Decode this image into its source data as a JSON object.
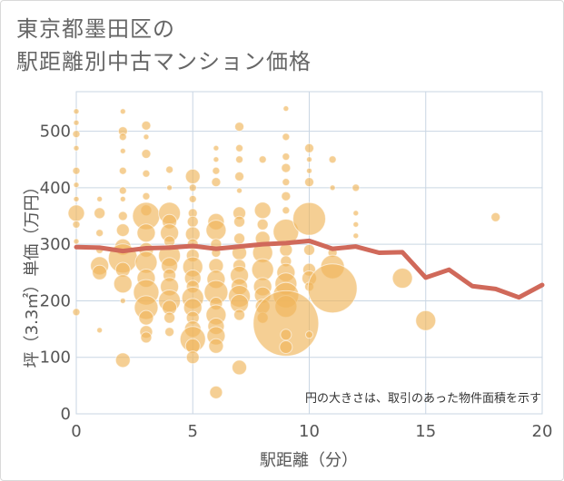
{
  "title_line1": "東京都墨田区の",
  "title_line2": "駅距離別中古マンション価格",
  "chart_data": {
    "type": "scatter",
    "xlabel": "駅距離（分）",
    "ylabel": "坪（3.3㎡）単価（万円）",
    "xlim": [
      0,
      20
    ],
    "ylim": [
      0,
      570
    ],
    "xticks": [
      0,
      5,
      10,
      15,
      20
    ],
    "yticks": [
      0,
      100,
      200,
      300,
      400,
      500
    ],
    "grid": true,
    "note": "円の大きさは、取引のあった物件面積を示す",
    "colors": {
      "bubble": "#f0b55a",
      "line": "#d0695a",
      "grid": "#c9d6e3",
      "tick": "#555555"
    },
    "bubbles": [
      {
        "x": 0,
        "y": 535,
        "s": 3
      },
      {
        "x": 0,
        "y": 515,
        "s": 3
      },
      {
        "x": 0,
        "y": 495,
        "s": 4
      },
      {
        "x": 0,
        "y": 470,
        "s": 3
      },
      {
        "x": 0,
        "y": 430,
        "s": 4
      },
      {
        "x": 0,
        "y": 405,
        "s": 3
      },
      {
        "x": 0,
        "y": 380,
        "s": 3
      },
      {
        "x": 0,
        "y": 355,
        "s": 9
      },
      {
        "x": 0,
        "y": 335,
        "s": 4
      },
      {
        "x": 0,
        "y": 305,
        "s": 3
      },
      {
        "x": 0,
        "y": 180,
        "s": 4
      },
      {
        "x": 1,
        "y": 380,
        "s": 3
      },
      {
        "x": 1,
        "y": 355,
        "s": 6
      },
      {
        "x": 1,
        "y": 320,
        "s": 4
      },
      {
        "x": 1,
        "y": 290,
        "s": 4
      },
      {
        "x": 1,
        "y": 262,
        "s": 10
      },
      {
        "x": 1,
        "y": 250,
        "s": 8
      },
      {
        "x": 1,
        "y": 148,
        "s": 3
      },
      {
        "x": 2,
        "y": 535,
        "s": 3
      },
      {
        "x": 2,
        "y": 500,
        "s": 5
      },
      {
        "x": 2,
        "y": 490,
        "s": 4
      },
      {
        "x": 2,
        "y": 465,
        "s": 3
      },
      {
        "x": 2,
        "y": 430,
        "s": 4
      },
      {
        "x": 2,
        "y": 395,
        "s": 4
      },
      {
        "x": 2,
        "y": 380,
        "s": 3
      },
      {
        "x": 2,
        "y": 350,
        "s": 5
      },
      {
        "x": 2,
        "y": 325,
        "s": 7
      },
      {
        "x": 2,
        "y": 295,
        "s": 9
      },
      {
        "x": 2,
        "y": 275,
        "s": 16
      },
      {
        "x": 2,
        "y": 255,
        "s": 8
      },
      {
        "x": 2,
        "y": 230,
        "s": 10
      },
      {
        "x": 2,
        "y": 200,
        "s": 3
      },
      {
        "x": 2,
        "y": 95,
        "s": 8
      },
      {
        "x": 3,
        "y": 510,
        "s": 5
      },
      {
        "x": 3,
        "y": 490,
        "s": 3
      },
      {
        "x": 3,
        "y": 460,
        "s": 5
      },
      {
        "x": 3,
        "y": 425,
        "s": 4
      },
      {
        "x": 3,
        "y": 385,
        "s": 4
      },
      {
        "x": 3,
        "y": 360,
        "s": 6
      },
      {
        "x": 3,
        "y": 350,
        "s": 15
      },
      {
        "x": 3,
        "y": 320,
        "s": 10
      },
      {
        "x": 3,
        "y": 290,
        "s": 8
      },
      {
        "x": 3,
        "y": 268,
        "s": 12
      },
      {
        "x": 3,
        "y": 240,
        "s": 10
      },
      {
        "x": 3,
        "y": 215,
        "s": 14
      },
      {
        "x": 3,
        "y": 188,
        "s": 13
      },
      {
        "x": 3,
        "y": 170,
        "s": 8
      },
      {
        "x": 3,
        "y": 145,
        "s": 7
      },
      {
        "x": 3,
        "y": 135,
        "s": 6
      },
      {
        "x": 4,
        "y": 432,
        "s": 4
      },
      {
        "x": 4,
        "y": 400,
        "s": 3
      },
      {
        "x": 4,
        "y": 355,
        "s": 12
      },
      {
        "x": 4,
        "y": 340,
        "s": 8
      },
      {
        "x": 4,
        "y": 320,
        "s": 10
      },
      {
        "x": 4,
        "y": 305,
        "s": 6
      },
      {
        "x": 4,
        "y": 280,
        "s": 12
      },
      {
        "x": 4,
        "y": 262,
        "s": 9
      },
      {
        "x": 4,
        "y": 245,
        "s": 7
      },
      {
        "x": 4,
        "y": 225,
        "s": 10
      },
      {
        "x": 4,
        "y": 200,
        "s": 12
      },
      {
        "x": 4,
        "y": 188,
        "s": 8
      },
      {
        "x": 4,
        "y": 170,
        "s": 6
      },
      {
        "x": 4,
        "y": 145,
        "s": 5
      },
      {
        "x": 5,
        "y": 420,
        "s": 8
      },
      {
        "x": 5,
        "y": 400,
        "s": 4
      },
      {
        "x": 5,
        "y": 380,
        "s": 4
      },
      {
        "x": 5,
        "y": 355,
        "s": 5
      },
      {
        "x": 5,
        "y": 340,
        "s": 6
      },
      {
        "x": 5,
        "y": 318,
        "s": 8
      },
      {
        "x": 5,
        "y": 300,
        "s": 6
      },
      {
        "x": 5,
        "y": 280,
        "s": 7
      },
      {
        "x": 5,
        "y": 260,
        "s": 11
      },
      {
        "x": 5,
        "y": 240,
        "s": 9
      },
      {
        "x": 5,
        "y": 225,
        "s": 7
      },
      {
        "x": 5,
        "y": 205,
        "s": 12
      },
      {
        "x": 5,
        "y": 188,
        "s": 10
      },
      {
        "x": 5,
        "y": 170,
        "s": 7
      },
      {
        "x": 5,
        "y": 150,
        "s": 9
      },
      {
        "x": 5,
        "y": 132,
        "s": 14
      },
      {
        "x": 5,
        "y": 120,
        "s": 8
      },
      {
        "x": 5,
        "y": 100,
        "s": 7
      },
      {
        "x": 6,
        "y": 470,
        "s": 3
      },
      {
        "x": 6,
        "y": 450,
        "s": 3
      },
      {
        "x": 6,
        "y": 430,
        "s": 4
      },
      {
        "x": 6,
        "y": 410,
        "s": 5
      },
      {
        "x": 6,
        "y": 340,
        "s": 9
      },
      {
        "x": 6,
        "y": 325,
        "s": 11
      },
      {
        "x": 6,
        "y": 300,
        "s": 6
      },
      {
        "x": 6,
        "y": 285,
        "s": 5
      },
      {
        "x": 6,
        "y": 262,
        "s": 8
      },
      {
        "x": 6,
        "y": 238,
        "s": 10
      },
      {
        "x": 6,
        "y": 215,
        "s": 13
      },
      {
        "x": 6,
        "y": 195,
        "s": 7
      },
      {
        "x": 6,
        "y": 175,
        "s": 11
      },
      {
        "x": 6,
        "y": 155,
        "s": 9
      },
      {
        "x": 6,
        "y": 138,
        "s": 10
      },
      {
        "x": 6,
        "y": 120,
        "s": 8
      },
      {
        "x": 6,
        "y": 38,
        "s": 7
      },
      {
        "x": 7,
        "y": 508,
        "s": 5
      },
      {
        "x": 7,
        "y": 470,
        "s": 4
      },
      {
        "x": 7,
        "y": 450,
        "s": 4
      },
      {
        "x": 7,
        "y": 420,
        "s": 5
      },
      {
        "x": 7,
        "y": 395,
        "s": 3
      },
      {
        "x": 7,
        "y": 355,
        "s": 7
      },
      {
        "x": 7,
        "y": 340,
        "s": 6
      },
      {
        "x": 7,
        "y": 310,
        "s": 6
      },
      {
        "x": 7,
        "y": 285,
        "s": 8
      },
      {
        "x": 7,
        "y": 262,
        "s": 7
      },
      {
        "x": 7,
        "y": 245,
        "s": 10
      },
      {
        "x": 7,
        "y": 225,
        "s": 9
      },
      {
        "x": 7,
        "y": 208,
        "s": 12
      },
      {
        "x": 7,
        "y": 195,
        "s": 10
      },
      {
        "x": 7,
        "y": 175,
        "s": 6
      },
      {
        "x": 7,
        "y": 82,
        "s": 8
      },
      {
        "x": 8,
        "y": 450,
        "s": 4
      },
      {
        "x": 8,
        "y": 360,
        "s": 9
      },
      {
        "x": 8,
        "y": 335,
        "s": 6
      },
      {
        "x": 8,
        "y": 310,
        "s": 8
      },
      {
        "x": 8,
        "y": 285,
        "s": 11
      },
      {
        "x": 8,
        "y": 255,
        "s": 12
      },
      {
        "x": 8,
        "y": 225,
        "s": 10
      },
      {
        "x": 8,
        "y": 210,
        "s": 9
      },
      {
        "x": 8,
        "y": 190,
        "s": 8
      },
      {
        "x": 8,
        "y": 170,
        "s": 6
      },
      {
        "x": 9,
        "y": 540,
        "s": 3
      },
      {
        "x": 9,
        "y": 490,
        "s": 4
      },
      {
        "x": 9,
        "y": 455,
        "s": 4
      },
      {
        "x": 9,
        "y": 435,
        "s": 5
      },
      {
        "x": 9,
        "y": 410,
        "s": 4
      },
      {
        "x": 9,
        "y": 385,
        "s": 5
      },
      {
        "x": 9,
        "y": 360,
        "s": 4
      },
      {
        "x": 9,
        "y": 322,
        "s": 14
      },
      {
        "x": 9,
        "y": 290,
        "s": 7
      },
      {
        "x": 9,
        "y": 270,
        "s": 6
      },
      {
        "x": 9,
        "y": 250,
        "s": 10
      },
      {
        "x": 9,
        "y": 230,
        "s": 12
      },
      {
        "x": 9,
        "y": 210,
        "s": 14
      },
      {
        "x": 9,
        "y": 190,
        "s": 12
      },
      {
        "x": 9,
        "y": 160,
        "s": 36
      },
      {
        "x": 9,
        "y": 140,
        "s": 6
      },
      {
        "x": 9,
        "y": 118,
        "s": 7
      },
      {
        "x": 10,
        "y": 470,
        "s": 5
      },
      {
        "x": 10,
        "y": 450,
        "s": 3
      },
      {
        "x": 10,
        "y": 430,
        "s": 3
      },
      {
        "x": 10,
        "y": 410,
        "s": 5
      },
      {
        "x": 10,
        "y": 345,
        "s": 18
      },
      {
        "x": 10,
        "y": 290,
        "s": 6
      },
      {
        "x": 10,
        "y": 255,
        "s": 7
      },
      {
        "x": 10,
        "y": 240,
        "s": 8
      },
      {
        "x": 10,
        "y": 225,
        "s": 5
      },
      {
        "x": 10,
        "y": 140,
        "s": 4
      },
      {
        "x": 11,
        "y": 450,
        "s": 4
      },
      {
        "x": 11,
        "y": 400,
        "s": 3
      },
      {
        "x": 11,
        "y": 285,
        "s": 5
      },
      {
        "x": 11,
        "y": 260,
        "s": 13
      },
      {
        "x": 11,
        "y": 222,
        "s": 27
      },
      {
        "x": 12,
        "y": 400,
        "s": 4
      },
      {
        "x": 12,
        "y": 355,
        "s": 3
      },
      {
        "x": 12,
        "y": 335,
        "s": 3
      },
      {
        "x": 12,
        "y": 315,
        "s": 3
      },
      {
        "x": 14,
        "y": 240,
        "s": 11
      },
      {
        "x": 15,
        "y": 165,
        "s": 11
      },
      {
        "x": 18,
        "y": 348,
        "s": 5
      }
    ],
    "series": [
      {
        "name": "",
        "x": [
          0,
          1,
          2,
          3,
          4,
          5,
          6,
          7,
          8,
          9,
          10,
          11,
          12,
          13,
          14,
          15,
          16,
          17,
          18,
          19,
          20
        ],
        "values": [
          295,
          294,
          288,
          293,
          294,
          297,
          292,
          296,
          300,
          302,
          306,
          292,
          296,
          285,
          286,
          241,
          255,
          226,
          221,
          206,
          228
        ]
      }
    ]
  }
}
